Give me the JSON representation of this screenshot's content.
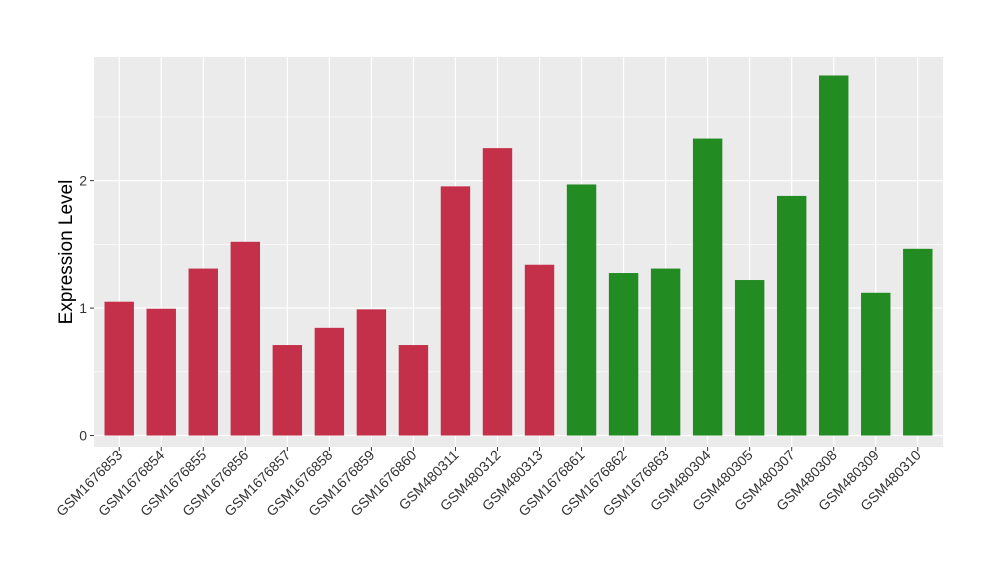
{
  "chart_data": {
    "type": "bar",
    "title": "",
    "xlabel": "",
    "ylabel": "Expression Level",
    "ylim": [
      -0.09,
      2.97
    ],
    "y_ticks": [
      0,
      1,
      2
    ],
    "grid": true,
    "legend": "none",
    "background_color": "#ebebeb",
    "grid_major_color": "#ffffff",
    "series": [
      {
        "color": "#c4304a",
        "categories": [
          "GSM1676853",
          "GSM1676854",
          "GSM1676855",
          "GSM1676856",
          "GSM1676857",
          "GSM1676858",
          "GSM1676859",
          "GSM1676860",
          "GSM480311",
          "GSM480312",
          "GSM480313"
        ],
        "values": [
          1.05,
          0.995,
          1.31,
          1.52,
          0.71,
          0.845,
          0.99,
          0.71,
          1.955,
          2.255,
          1.34
        ]
      },
      {
        "color": "#228b22",
        "categories": [
          "GSM1676861",
          "GSM1676862",
          "GSM1676863",
          "GSM480304",
          "GSM480305",
          "GSM480307",
          "GSM480308",
          "GSM480309",
          "GSM480310"
        ],
        "values": [
          1.97,
          1.275,
          1.31,
          2.33,
          1.22,
          1.88,
          2.825,
          1.12,
          1.465
        ]
      }
    ]
  }
}
